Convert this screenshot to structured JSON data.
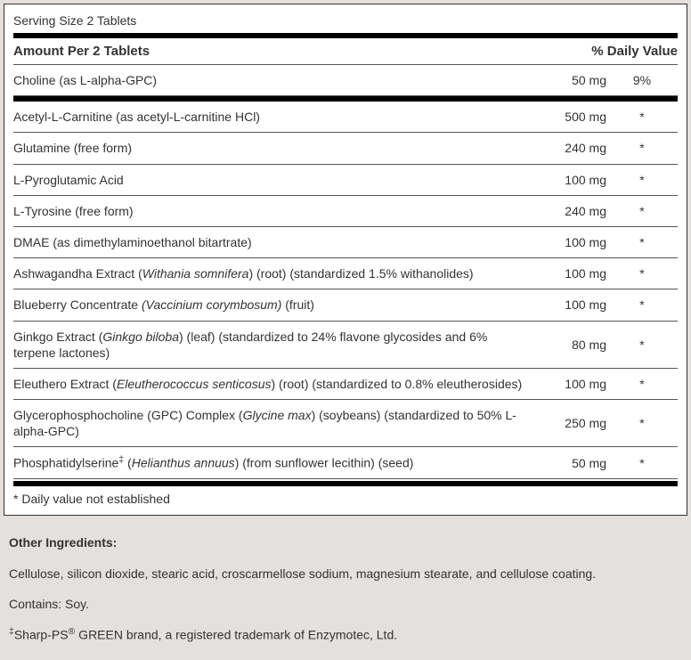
{
  "panel": {
    "serving_size": "Serving Size 2 Tablets",
    "header_left": "Amount Per 2 Tablets",
    "header_right": "% Daily Value",
    "footnote": "* Daily value not established"
  },
  "rows": {
    "r0_name": "Choline (as L-alpha-GPC)",
    "r0_amount": "50 mg",
    "r0_dv": "9%",
    "r1_name": "Acetyl-L-Carnitine (as acetyl-L-carnitine HCl)",
    "r1_amount": "500 mg",
    "r1_dv": "*",
    "r2_name": "Glutamine (free form)",
    "r2_amount": "240 mg",
    "r2_dv": "*",
    "r3_name": "L-Pyroglutamic Acid",
    "r3_amount": "100 mg",
    "r3_dv": "*",
    "r4_name": "L-Tyrosine (free form)",
    "r4_amount": "240 mg",
    "r4_dv": "*",
    "r5_name": "DMAE (as dimethylaminoethanol bitartrate)",
    "r5_amount": "100 mg",
    "r5_dv": "*",
    "r6_pre": "Ashwagandha Extract (",
    "r6_it": "Withania somnifera",
    "r6_post": ") (root) (standardized 1.5% withanolides)",
    "r6_amount": "100 mg",
    "r6_dv": "*",
    "r7_pre": "Blueberry Concentrate ",
    "r7_it": "(Vaccinium corymbosum)",
    "r7_post": " (fruit)",
    "r7_amount": "100 mg",
    "r7_dv": "*",
    "r8_pre": "Ginkgo Extract (",
    "r8_it": "Ginkgo biloba",
    "r8_post": ") (leaf) (standardized to 24% flavone glycosides and 6% terpene lactones)",
    "r8_amount": "80 mg",
    "r8_dv": "*",
    "r9_pre": "Eleuthero Extract (",
    "r9_it": "Eleutherococcus senticosus",
    "r9_post": ") (root) (standardized to 0.8% eleutherosides)",
    "r9_amount": "100 mg",
    "r9_dv": "*",
    "r10_pre": "Glycerophosphocholine (GPC) Complex (",
    "r10_it": "Glycine max",
    "r10_post": ") (soybeans) (standardized to 50% L-alpha-GPC)",
    "r10_amount": "250 mg",
    "r10_dv": "*",
    "r11_pre": "Phosphatidylserine",
    "r11_sup": "‡",
    "r11_mid": " (",
    "r11_it": "Helianthus annuus",
    "r11_post": ") (from sunflower lecithin) (seed)",
    "r11_amount": "50 mg",
    "r11_dv": "*"
  },
  "below": {
    "oi_label": "Other Ingredients:",
    "oi_text": "Cellulose, silicon dioxide, stearic acid, croscarmellose sodium, magnesium stearate, and cellulose coating.",
    "contains": "Contains: Soy.",
    "trademark_sup1": "‡",
    "trademark_pre": "Sharp-PS",
    "trademark_reg": "®",
    "trademark_post": " GREEN brand, a registered trademark of Enzymotec, Ltd."
  }
}
